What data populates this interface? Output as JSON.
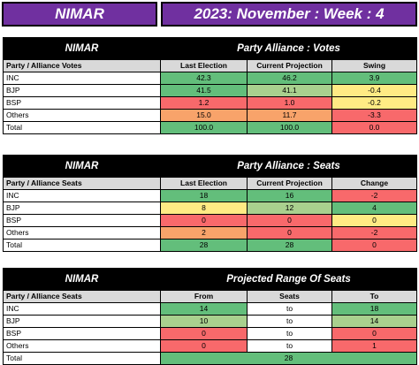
{
  "header": {
    "region": "NIMAR",
    "period": "2023: November : Week : 4"
  },
  "votes": {
    "region": "NIMAR",
    "title": "Party Alliance : Votes",
    "columns": [
      "Party / Alliance Votes",
      "Last Election",
      "Current Projection",
      "Swing"
    ],
    "rows": [
      {
        "party": "INC",
        "last": "42.3",
        "current": "46.2",
        "swing": "3.9"
      },
      {
        "party": "BJP",
        "last": "41.5",
        "current": "41.1",
        "swing": "-0.4"
      },
      {
        "party": "BSP",
        "last": "1.2",
        "current": "1.0",
        "swing": "-0.2"
      },
      {
        "party": "Others",
        "last": "15.0",
        "current": "11.7",
        "swing": "-3.3"
      },
      {
        "party": "Total",
        "last": "100.0",
        "current": "100.0",
        "swing": "0.0"
      }
    ]
  },
  "seats": {
    "region": "NIMAR",
    "title": "Party Alliance : Seats",
    "columns": [
      "Party / Alliance Seats",
      "Last Election",
      "Current Projection",
      "Change"
    ],
    "rows": [
      {
        "party": "INC",
        "last": "18",
        "current": "16",
        "change": "-2"
      },
      {
        "party": "BJP",
        "last": "8",
        "current": "12",
        "change": "4"
      },
      {
        "party": "BSP",
        "last": "0",
        "current": "0",
        "change": "0"
      },
      {
        "party": "Others",
        "last": "2",
        "current": "0",
        "change": "-2"
      },
      {
        "party": "Total",
        "last": "28",
        "current": "28",
        "change": "0"
      }
    ]
  },
  "range": {
    "region": "NIMAR",
    "title": "Projected Range Of Seats",
    "columns": [
      "Party / Alliance Seats",
      "From",
      "Seats",
      "To"
    ],
    "rows": [
      {
        "party": "INC",
        "from": "14",
        "mid": "to",
        "to": "18"
      },
      {
        "party": "BJP",
        "from": "10",
        "mid": "to",
        "to": "14"
      },
      {
        "party": "BSP",
        "from": "0",
        "mid": "to",
        "to": "0"
      },
      {
        "party": "Others",
        "from": "0",
        "mid": "to",
        "to": "1"
      }
    ],
    "total": {
      "party": "Total",
      "value": "28"
    }
  }
}
